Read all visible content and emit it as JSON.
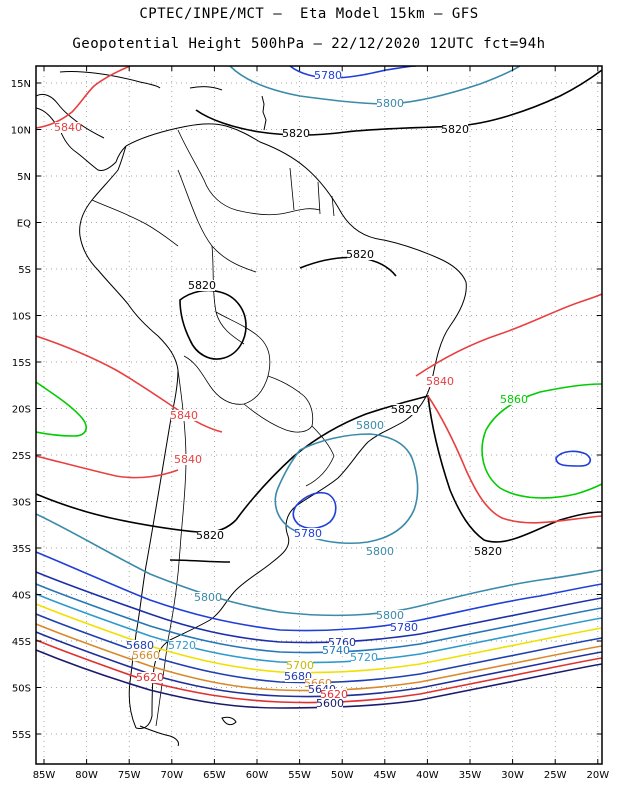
{
  "header": {
    "line1": "CPTEC/INPE/MCT –  Eta Model 15km – GFS",
    "line2": "Geopotential Height 500hPa – 22/12/2020 12UTC fct=94h"
  },
  "axes": {
    "lat_labels": [
      "15N",
      "10N",
      "5N",
      "EQ",
      "5S",
      "10S",
      "15S",
      "20S",
      "25S",
      "30S",
      "35S",
      "40S",
      "45S",
      "50S",
      "55S"
    ],
    "lon_labels": [
      "85W",
      "80W",
      "75W",
      "70W",
      "65W",
      "60W",
      "55W",
      "50W",
      "45W",
      "40W",
      "35W",
      "30W",
      "25W",
      "20W"
    ],
    "grid": "dotted"
  },
  "colors": {
    "c5580": "#1a1a6e",
    "c5620": "#e03030",
    "c5640": "#1f2f9a",
    "c5660": "#d88a2a",
    "c5680": "#1f3fb0",
    "c5700": "#f0e000",
    "c5720": "#2f9acc",
    "c5740": "#2577b8",
    "c5760": "#1c2fa8",
    "c5780": "#1f3fd8",
    "c5800": "#3a8aaa",
    "c5820": "#000000",
    "c5840": "#e84040",
    "c5860": "#00cc00",
    "coast": "#000000"
  },
  "contour_labels": [
    {
      "text": "5780",
      "color": "#1f3fd8"
    },
    {
      "text": "5800",
      "color": "#3a8aaa"
    },
    {
      "text": "5820",
      "color": "#000000"
    },
    {
      "text": "5820",
      "color": "#000000"
    },
    {
      "text": "5840",
      "color": "#e84040"
    },
    {
      "text": "5820",
      "color": "#000000"
    },
    {
      "text": "5820",
      "color": "#000000"
    },
    {
      "text": "5840",
      "color": "#e84040"
    },
    {
      "text": "5860",
      "color": "#00cc00"
    },
    {
      "text": "5840",
      "color": "#e84040"
    },
    {
      "text": "5820",
      "color": "#000000"
    },
    {
      "text": "5800",
      "color": "#3a8aaa"
    },
    {
      "text": "5840",
      "color": "#e84040"
    },
    {
      "text": "5820",
      "color": "#000000"
    },
    {
      "text": "5780",
      "color": "#1f3fd8"
    },
    {
      "text": "5800",
      "color": "#3a8aaa"
    },
    {
      "text": "5820",
      "color": "#000000"
    },
    {
      "text": "5800",
      "color": "#3a8aaa"
    },
    {
      "text": "5800",
      "color": "#3a8aaa"
    },
    {
      "text": "5780",
      "color": "#1f3fd8"
    },
    {
      "text": "5760",
      "color": "#1c2fa8"
    },
    {
      "text": "5740",
      "color": "#2577b8"
    },
    {
      "text": "5720",
      "color": "#2f9acc"
    },
    {
      "text": "5720",
      "color": "#2f9acc"
    },
    {
      "text": "5700",
      "color": "#c8b800"
    },
    {
      "text": "5680",
      "color": "#1f3fb0"
    },
    {
      "text": "5660",
      "color": "#d88a2a"
    },
    {
      "text": "5640",
      "color": "#1f2f9a"
    },
    {
      "text": "5620",
      "color": "#e03030"
    },
    {
      "text": "5600",
      "color": "#1a1a6e"
    },
    {
      "text": "5620",
      "color": "#e03030"
    },
    {
      "text": "5680",
      "color": "#1f3fb0"
    },
    {
      "text": "5660",
      "color": "#d88a2a"
    }
  ]
}
